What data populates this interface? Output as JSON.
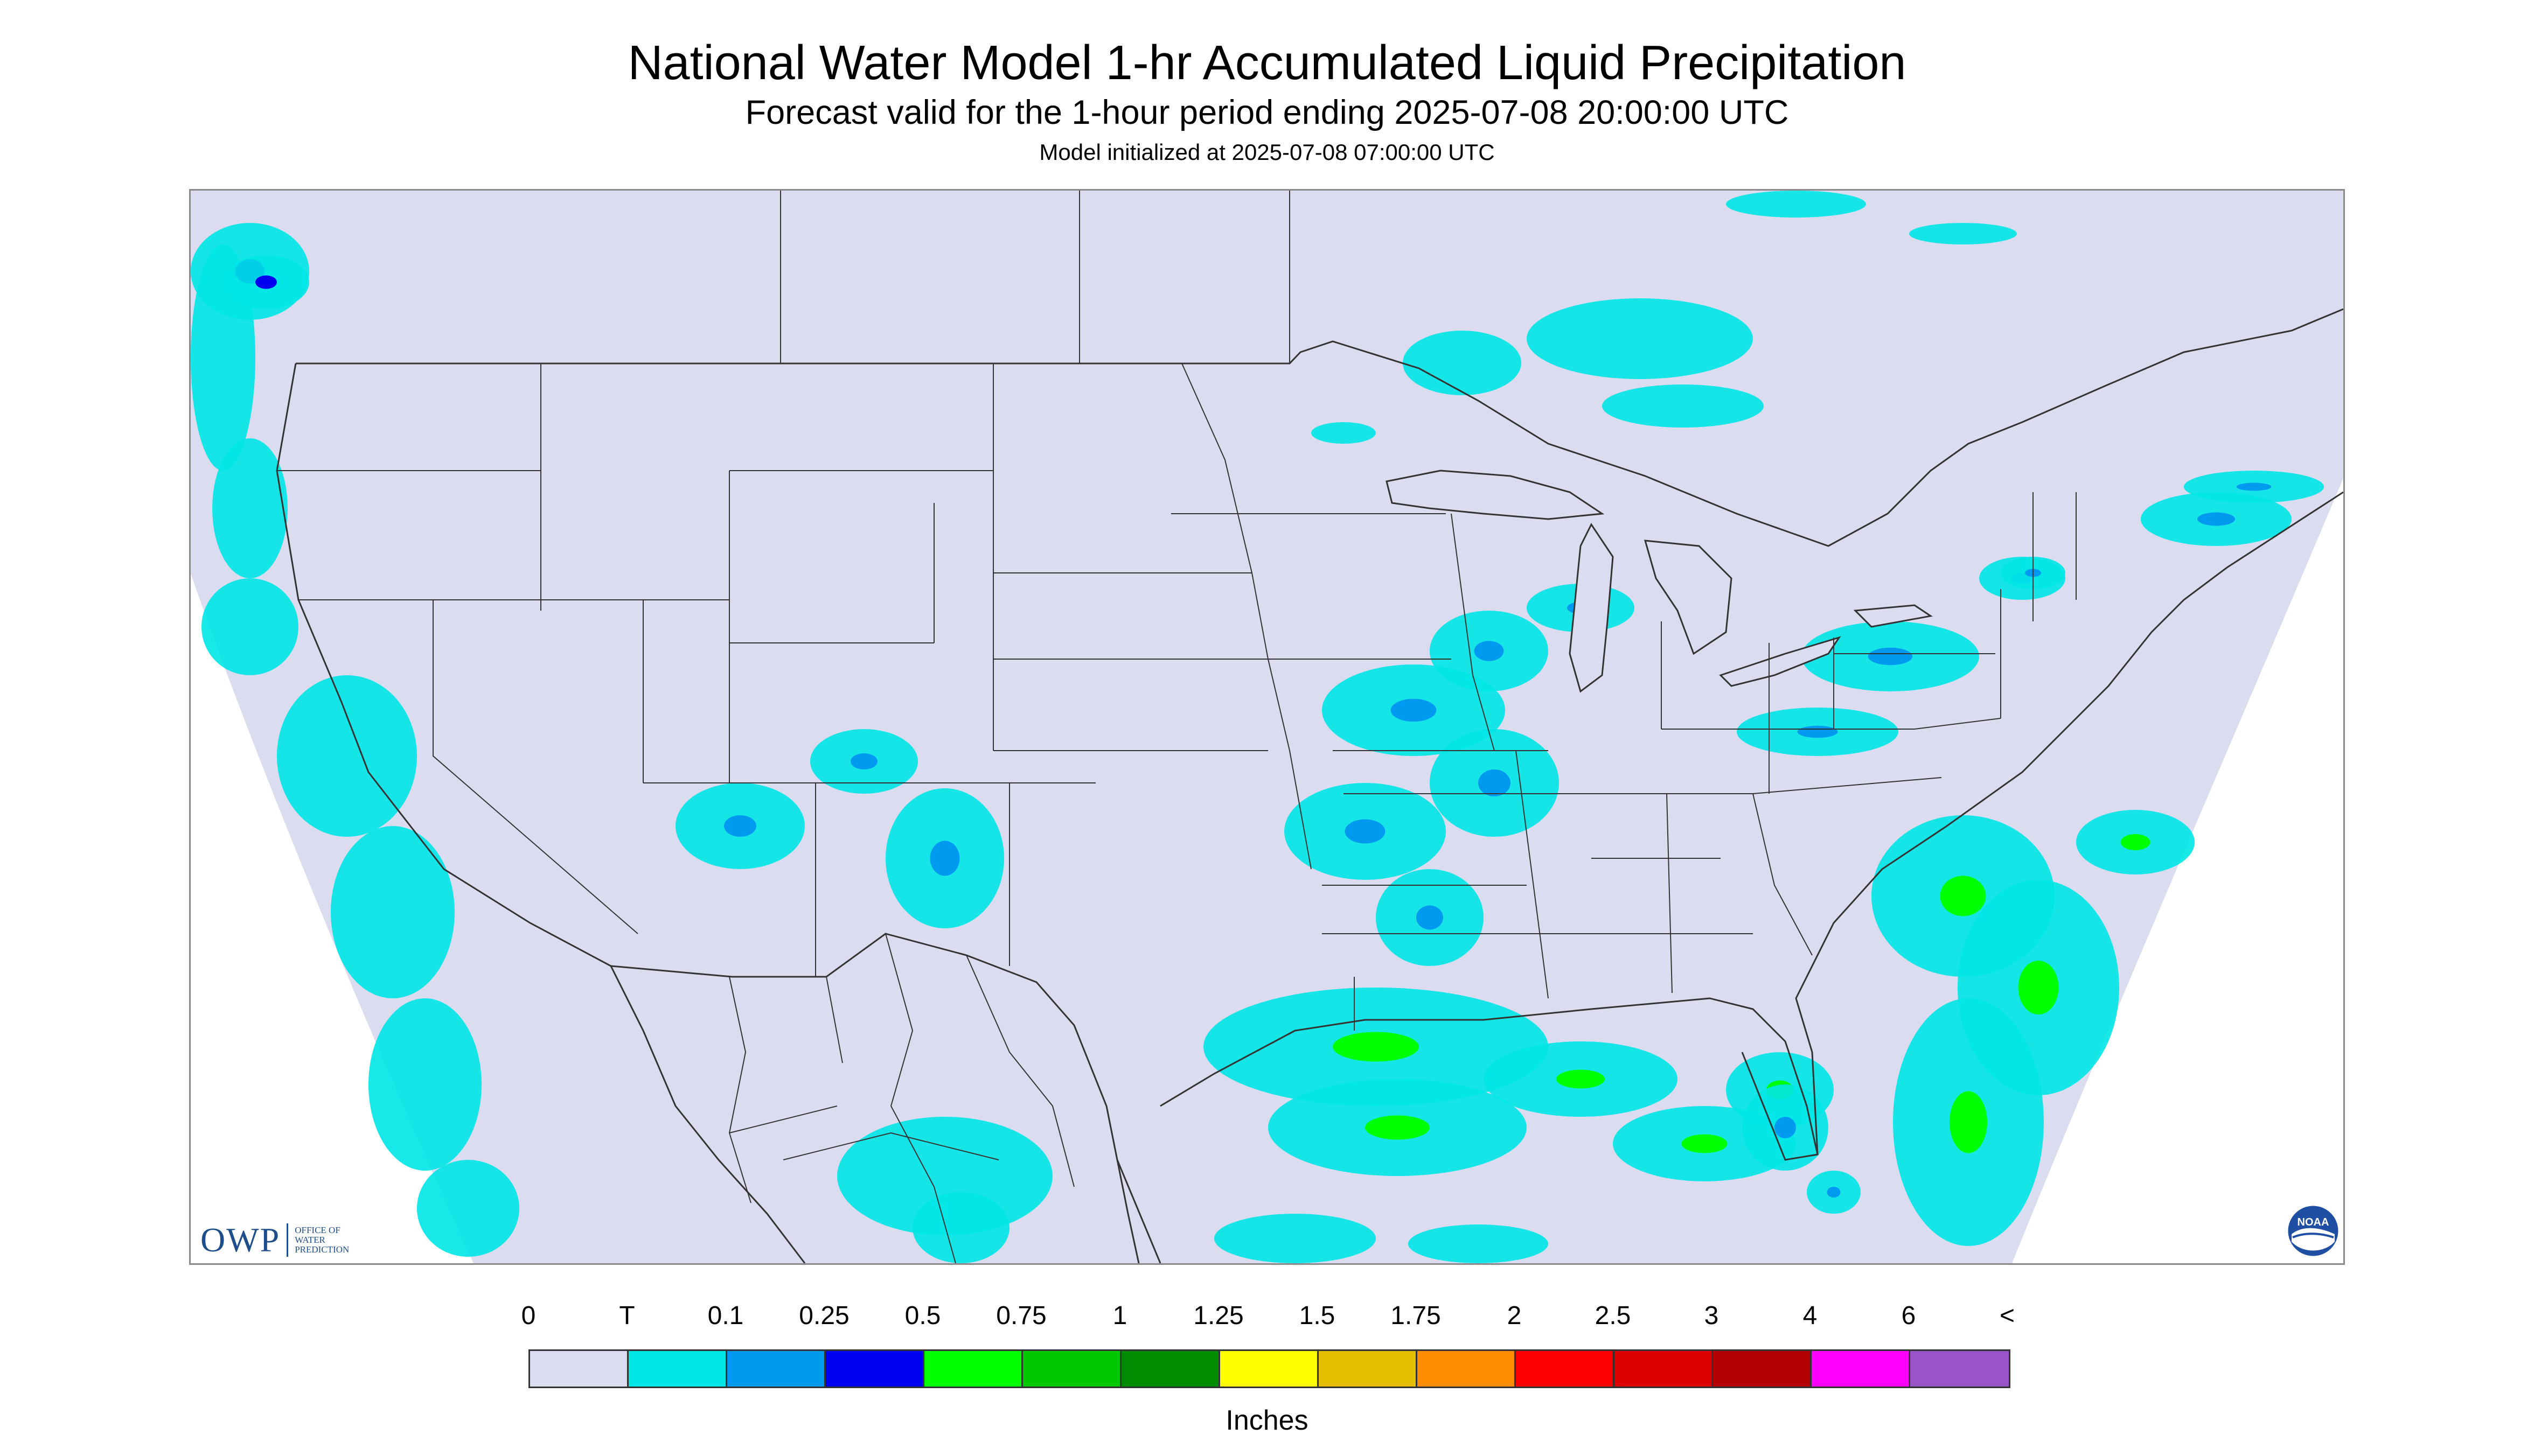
{
  "header": {
    "title": "National Water Model 1-hr Accumulated Liquid Precipitation",
    "subtitle": "Forecast valid for the 1-hour period ending 2025-07-08 20:00:00 UTC",
    "init": "Model initialized at 2025-07-08 07:00:00 UTC"
  },
  "map": {
    "background_color": "#dcdcf0",
    "outside_color": "#ffffff",
    "boundary_color": "#333333",
    "precip_regions": [
      {
        "name": "Pacific Northwest coast",
        "bin": "T"
      },
      {
        "name": "British Columbia coast",
        "bin": "0.25"
      },
      {
        "name": "Pacific offshore band",
        "bin": "T"
      },
      {
        "name": "Ontario / Lake Superior",
        "bin": "T"
      },
      {
        "name": "Upper Midwest / Illinois",
        "bin": "0.1"
      },
      {
        "name": "Ohio Valley / Pennsylvania",
        "bin": "0.1"
      },
      {
        "name": "New England coast",
        "bin": "0.1"
      },
      {
        "name": "Arkansas / Mississippi Valley",
        "bin": "0.1"
      },
      {
        "name": "Gulf Coast / Texas",
        "bin": "0.5"
      },
      {
        "name": "Atlantic offshore",
        "bin": "0.5"
      },
      {
        "name": "Florida",
        "bin": "0.1"
      },
      {
        "name": "New Mexico / Arizona scattered",
        "bin": "0.1"
      },
      {
        "name": "Mexico",
        "bin": "T"
      }
    ]
  },
  "logos": {
    "owp": "OWP",
    "owp_sub_1": "OFFICE OF",
    "owp_sub_2": "WATER",
    "owp_sub_3": "PREDICTION",
    "noaa": "NOAA",
    "owp_icon": "owp-logo-icon",
    "noaa_icon": "noaa-logo-icon"
  },
  "legend": {
    "labels": [
      "0",
      "T",
      "0.1",
      "0.25",
      "0.5",
      "0.75",
      "1",
      "1.25",
      "1.5",
      "1.75",
      "2",
      "2.5",
      "3",
      "4",
      "6",
      "<"
    ],
    "colors": [
      "#dcdcf0",
      "#00e6e6",
      "#0099f0",
      "#0000f0",
      "#00ff00",
      "#00c800",
      "#008c00",
      "#ffff00",
      "#e6be00",
      "#ff8c00",
      "#ff0000",
      "#dc0000",
      "#b40000",
      "#ff00ff",
      "#9955c8"
    ],
    "units": "Inches"
  }
}
